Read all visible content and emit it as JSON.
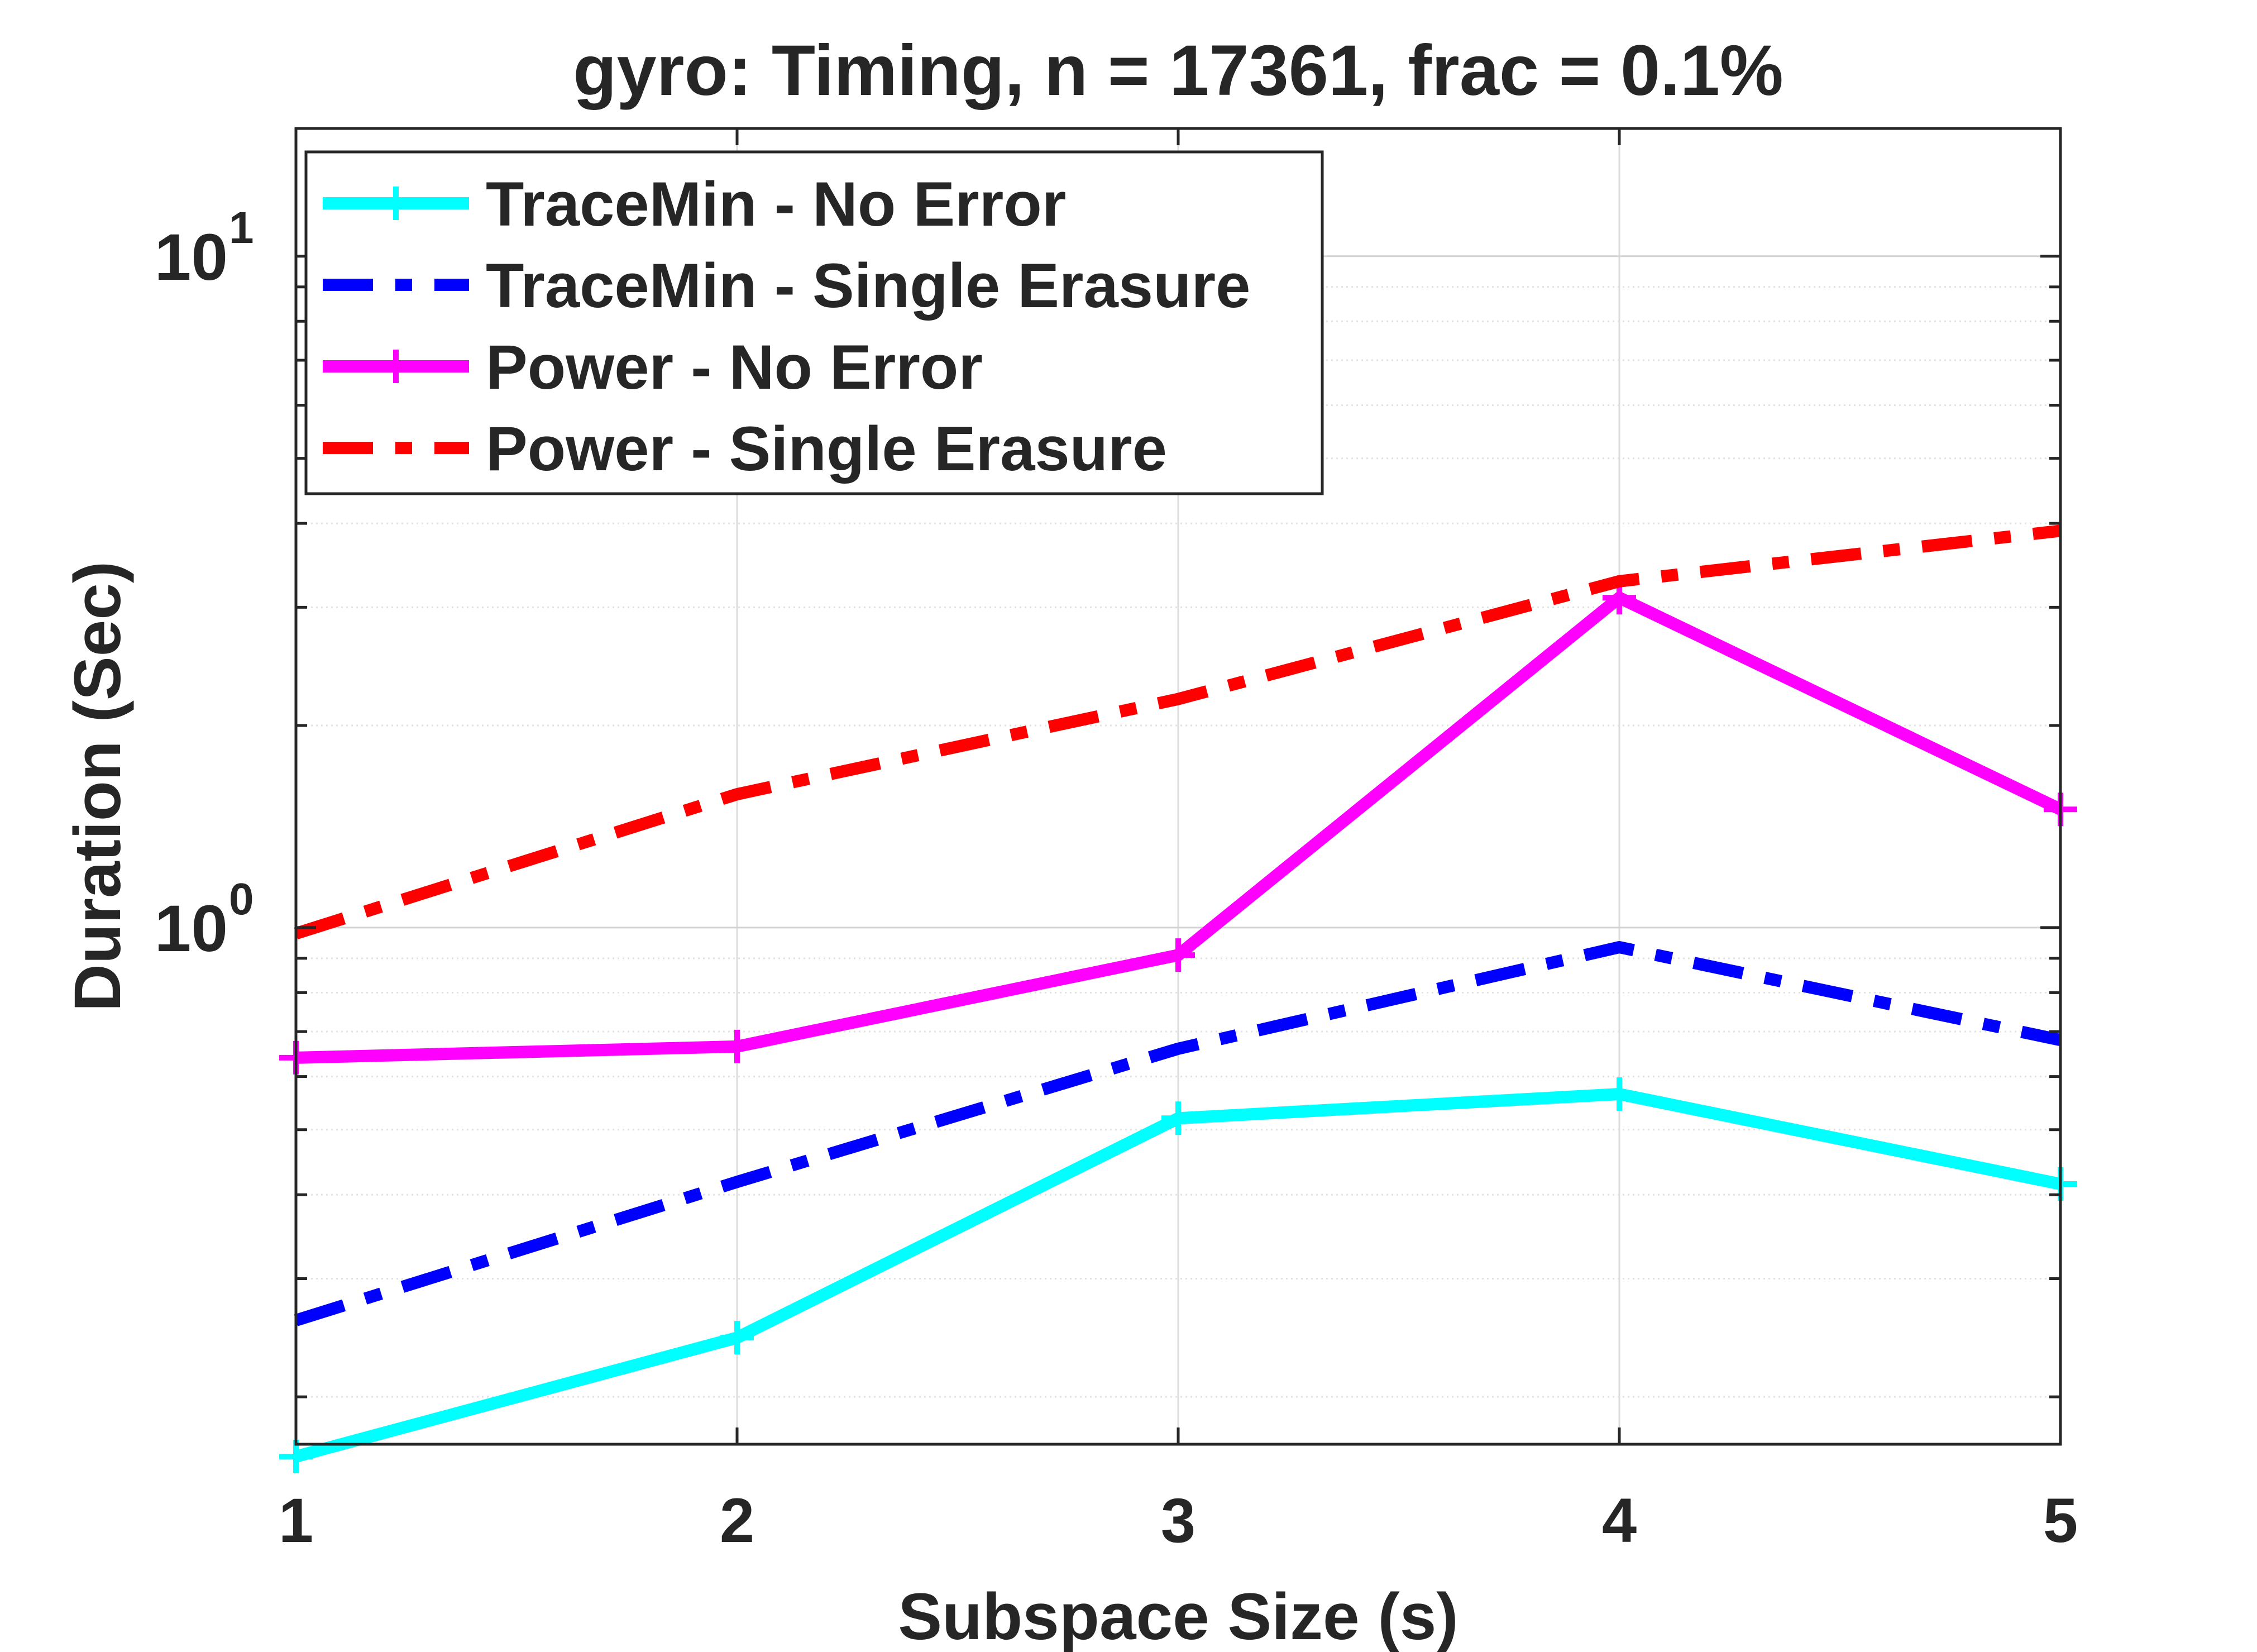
{
  "chart_data": {
    "type": "line",
    "title": "gyro: Timing, n = 17361, frac = 0.1%",
    "xlabel": "Subspace Size (s)",
    "ylabel": "Duration (Sec)",
    "x": [
      1,
      2,
      3,
      4,
      5
    ],
    "xlim": [
      1,
      5
    ],
    "ylim": [
      0.17,
      15.5
    ],
    "yscale": "log",
    "grid": true,
    "legend_position": "top-left",
    "x_tick_labels": [
      "1",
      "2",
      "3",
      "4",
      "5"
    ],
    "y_ticks": [
      {
        "value": 1,
        "base": "10",
        "exp": "0"
      },
      {
        "value": 10,
        "base": "10",
        "exp": "1"
      }
    ],
    "series": [
      {
        "name": "TraceMin - No Error",
        "values": [
          0.163,
          0.245,
          0.52,
          0.565,
          0.415
        ],
        "color": "#00ffff",
        "style": "solid",
        "marker": "plus"
      },
      {
        "name": "TraceMin - Single Erasure",
        "values": [
          0.26,
          0.418,
          0.66,
          0.935,
          0.68
        ],
        "color": "#0000ff",
        "style": "dashdot",
        "marker": "none"
      },
      {
        "name": "Power - No Error",
        "values": [
          0.64,
          0.665,
          0.91,
          3.1,
          1.5
        ],
        "color": "#ff00ff",
        "style": "solid",
        "marker": "plus"
      },
      {
        "name": "Power - Single Erasure",
        "values": [
          0.98,
          1.58,
          2.19,
          3.28,
          3.9
        ],
        "color": "#ff0000",
        "style": "dashdot",
        "marker": "none"
      }
    ]
  }
}
